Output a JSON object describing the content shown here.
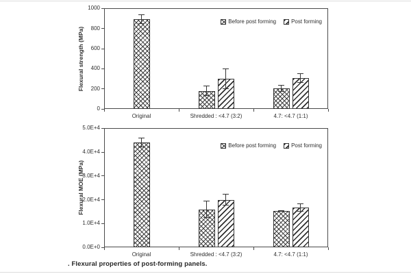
{
  "figure": {
    "caption": ". Flexural properties of post-forming panels.",
    "background": "#ffffff",
    "ink_color": "#2e2e2e",
    "axis_color": "#4a4a4a",
    "edge_rule_color": "#dcdcdc"
  },
  "chart_data": [
    {
      "type": "bar",
      "title": "",
      "xlabel": "",
      "ylabel": "Flexural strength (MPa)",
      "categories": [
        "Original",
        "Shredded : <4.7 (3:2)",
        "4.7: <4.7 (1:1)"
      ],
      "series": [
        {
          "name": "Before post forming",
          "pattern": "crosshatch",
          "values": [
            890,
            180,
            205
          ],
          "errors": [
            48,
            50,
            35
          ]
        },
        {
          "name": "Post forming",
          "pattern": "diagonal",
          "values": [
            null,
            300,
            305
          ],
          "errors": [
            null,
            100,
            48
          ]
        }
      ],
      "ylim": [
        0,
        1000
      ],
      "yticks": [
        0,
        200,
        400,
        600,
        800,
        1000
      ],
      "ytick_labels": [
        "0",
        "200",
        "400",
        "600",
        "800",
        "1000"
      ],
      "legend_position": "top-right-inside",
      "grid": false
    },
    {
      "type": "bar",
      "title": "",
      "xlabel": "",
      "ylabel": "Flexural MOE (MPa)",
      "categories": [
        "Original",
        "Shredded : <4.7 (3:2)",
        "4.7: <4.7 (1:1)"
      ],
      "series": [
        {
          "name": "Before post forming",
          "pattern": "crosshatch",
          "values": [
            44000,
            16000,
            15300
          ],
          "errors": [
            2000,
            3500,
            300
          ]
        },
        {
          "name": "Post forming",
          "pattern": "diagonal",
          "values": [
            null,
            20000,
            16700
          ],
          "errors": [
            null,
            2400,
            1700
          ]
        }
      ],
      "ylim": [
        0,
        50000
      ],
      "yticks": [
        0,
        10000,
        20000,
        30000,
        40000,
        50000
      ],
      "ytick_labels": [
        "0.0E+0",
        "1.0E+4",
        "2.0E+4",
        "3.0E+4",
        "4.0E+4",
        "5.0E+4"
      ],
      "legend_position": "top-right-inside",
      "grid": false
    }
  ]
}
